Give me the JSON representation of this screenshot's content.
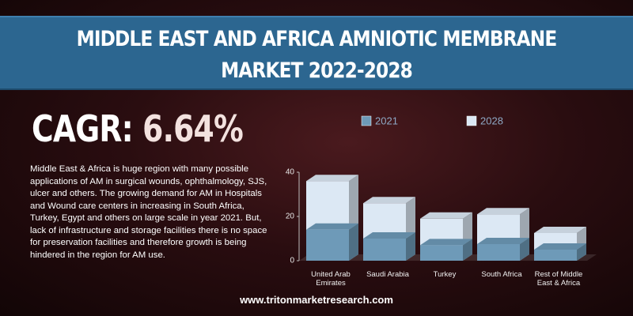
{
  "header": {
    "title": "MIDDLE EAST AND AFRICA AMNIOTIC MEMBRANE MARKET 2022-2028"
  },
  "cagr": {
    "label": "CAGR:",
    "value": "6.64%"
  },
  "description": "Middle East & Africa is huge region with many possible applications of AM in surgical wounds, ophthalmology, SJS, ulcer and others. The growing demand for AM in Hospitals and Wound care centers in increasing in South Africa, Turkey, Egypt and others on large scale in year 2021. But, lack of infrastructure and storage facilities there is no space for preservation facilities and therefore growth is being hindered in the region for AM use.",
  "footer": {
    "url": "www.tritonmarketresearch.com"
  },
  "chart_data": {
    "type": "bar3d",
    "categories": [
      "United Arab Emirates",
      "Saudi Arabia",
      "Turkey",
      "South Africa",
      "Rest of Middle East & Africa"
    ],
    "series": [
      {
        "name": "2021",
        "color": "#6e9ab8",
        "values": [
          14,
          10,
          7,
          7.5,
          5
        ]
      },
      {
        "name": "2028",
        "color": "#dce8f4",
        "values": [
          36,
          26,
          19,
          21,
          12.5
        ]
      }
    ],
    "ylim": [
      0,
      40
    ],
    "yticks": [
      0,
      20,
      40
    ],
    "grid": false
  }
}
